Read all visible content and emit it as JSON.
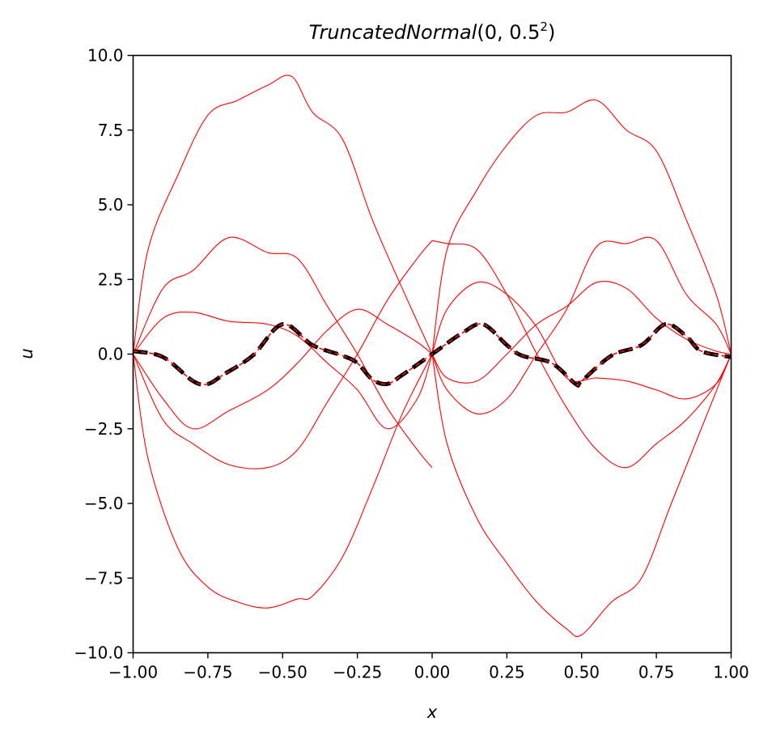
{
  "chart_data": {
    "type": "line",
    "title": {
      "italic": "TruncatedNormal",
      "plain": "(0, 0.5",
      "superscript": "2",
      "close": ")"
    },
    "xlabel": "x",
    "ylabel": "u",
    "xlim": [
      -1.0,
      1.0
    ],
    "ylim": [
      -10.0,
      10.0
    ],
    "grid": false,
    "legend": "none",
    "x_ticks": [
      "−1.00",
      "−0.75",
      "−0.50",
      "−0.25",
      "0.00",
      "0.25",
      "0.50",
      "0.75",
      "1.00"
    ],
    "x_tick_values": [
      -1.0,
      -0.75,
      -0.5,
      -0.25,
      0.0,
      0.25,
      0.5,
      0.75,
      1.0
    ],
    "y_ticks": [
      "−10.0",
      "−7.5",
      "−5.0",
      "−2.5",
      "0.0",
      "2.5",
      "5.0",
      "7.5",
      "10.0"
    ],
    "y_tick_values": [
      -10.0,
      -7.5,
      -5.0,
      -2.5,
      0.0,
      2.5,
      5.0,
      7.5,
      10.0
    ],
    "reference_curve": {
      "description": "u = -sin(pi x) * sin(4 pi x)^2 sign-pattern wave (amplitude 1)",
      "x": [
        -1.0,
        -0.9,
        -0.8,
        -0.75,
        -0.7,
        -0.6,
        -0.5,
        -0.4,
        -0.3,
        -0.25,
        -0.2,
        -0.15,
        -0.1,
        0.0,
        0.1,
        0.17,
        0.25,
        0.3,
        0.4,
        0.48,
        0.5,
        0.6,
        0.7,
        0.78,
        0.85,
        0.9,
        1.0
      ],
      "y": [
        0.1,
        -0.1,
        -0.9,
        -1.0,
        -0.7,
        -0.05,
        1.0,
        0.3,
        -0.05,
        -0.3,
        -0.85,
        -1.0,
        -0.7,
        0.0,
        0.7,
        1.0,
        0.3,
        -0.05,
        -0.3,
        -1.0,
        -0.9,
        -0.05,
        0.3,
        1.0,
        0.6,
        0.1,
        -0.1
      ]
    },
    "colors": {
      "samples": "#ff0000",
      "reference": "#000000",
      "axes": "#000000"
    },
    "series": [
      {
        "x": [
          -1.0,
          -0.95,
          -0.85,
          -0.75,
          -0.65,
          -0.55,
          -0.47,
          -0.4,
          -0.3,
          -0.2,
          -0.1,
          0.0
        ],
        "y": [
          0.0,
          3.5,
          6.0,
          8.0,
          8.5,
          9.0,
          9.3,
          8.1,
          7.2,
          4.5,
          2.2,
          0.0
        ]
      },
      {
        "x": [
          -1.0,
          -0.95,
          -0.85,
          -0.75,
          -0.65,
          -0.55,
          -0.45,
          -0.4,
          -0.3,
          -0.2,
          -0.1,
          0.0
        ],
        "y": [
          0.0,
          -3.5,
          -6.5,
          -7.8,
          -8.3,
          -8.5,
          -8.2,
          -8.1,
          -6.8,
          -4.5,
          -2.0,
          0.0
        ]
      },
      {
        "x": [
          -1.0,
          -0.9,
          -0.8,
          -0.68,
          -0.55,
          -0.45,
          -0.35,
          -0.25,
          -0.15,
          -0.05,
          0.0
        ],
        "y": [
          0.0,
          2.2,
          2.8,
          3.9,
          3.4,
          3.2,
          1.6,
          0.0,
          -1.8,
          -3.2,
          -3.8
        ]
      },
      {
        "x": [
          -1.0,
          -0.9,
          -0.8,
          -0.68,
          -0.55,
          -0.45,
          -0.35,
          -0.25,
          -0.15,
          -0.05,
          0.0
        ],
        "y": [
          0.0,
          -2.2,
          -3.0,
          -3.7,
          -3.8,
          -3.2,
          -1.6,
          0.0,
          1.8,
          3.2,
          3.8
        ]
      },
      {
        "x": [
          -1.0,
          -0.9,
          -0.8,
          -0.68,
          -0.55,
          -0.45,
          -0.35,
          -0.25,
          -0.15,
          -0.05,
          0.0
        ],
        "y": [
          0.0,
          1.2,
          1.4,
          1.1,
          1.0,
          0.6,
          -0.3,
          -1.2,
          -2.5,
          -1.5,
          0.0
        ]
      },
      {
        "x": [
          -1.0,
          -0.9,
          -0.8,
          -0.68,
          -0.55,
          -0.45,
          -0.35,
          -0.25,
          -0.15,
          -0.05,
          0.0
        ],
        "y": [
          0.0,
          -1.5,
          -2.5,
          -1.9,
          -1.2,
          -0.3,
          0.8,
          1.5,
          1.0,
          0.4,
          0.0
        ]
      },
      {
        "x": [
          0.0,
          0.05,
          0.15,
          0.25,
          0.35,
          0.45,
          0.55,
          0.65,
          0.75,
          0.85,
          0.95,
          1.0
        ],
        "y": [
          0.0,
          3.5,
          5.5,
          7.0,
          8.0,
          8.1,
          8.5,
          7.5,
          6.8,
          4.5,
          2.0,
          0.0
        ]
      },
      {
        "x": [
          0.0,
          0.05,
          0.15,
          0.25,
          0.35,
          0.45,
          0.5,
          0.6,
          0.7,
          0.8,
          0.9,
          1.0
        ],
        "y": [
          0.0,
          -3.0,
          -5.5,
          -7.0,
          -8.3,
          -9.2,
          -9.4,
          -8.3,
          -7.5,
          -5.0,
          -2.5,
          0.0
        ]
      },
      {
        "x": [
          0.0,
          0.05,
          0.15,
          0.25,
          0.35,
          0.45,
          0.55,
          0.65,
          0.75,
          0.85,
          0.95,
          1.0
        ],
        "y": [
          3.8,
          3.7,
          3.5,
          2.0,
          0.0,
          -1.8,
          -3.2,
          -3.8,
          -3.0,
          -2.2,
          -1.0,
          0.0
        ]
      },
      {
        "x": [
          0.0,
          0.05,
          0.15,
          0.25,
          0.35,
          0.45,
          0.55,
          0.65,
          0.75,
          0.85,
          0.95,
          1.0
        ],
        "y": [
          0.0,
          -1.2,
          -2.0,
          -1.5,
          0.0,
          1.5,
          3.6,
          3.7,
          3.8,
          2.0,
          1.0,
          0.0
        ]
      },
      {
        "x": [
          0.0,
          0.05,
          0.15,
          0.25,
          0.35,
          0.45,
          0.55,
          0.65,
          0.75,
          0.85,
          0.95,
          1.0
        ],
        "y": [
          0.0,
          1.5,
          2.4,
          2.0,
          0.9,
          -0.8,
          -0.8,
          -0.9,
          -1.2,
          -1.5,
          -1.0,
          0.0
        ]
      },
      {
        "x": [
          0.0,
          0.05,
          0.15,
          0.25,
          0.35,
          0.45,
          0.55,
          0.65,
          0.75,
          0.85,
          0.95,
          1.0
        ],
        "y": [
          0.0,
          -0.8,
          -0.9,
          0.0,
          1.0,
          1.6,
          2.4,
          2.2,
          1.2,
          0.5,
          0.1,
          0.0
        ]
      }
    ]
  }
}
